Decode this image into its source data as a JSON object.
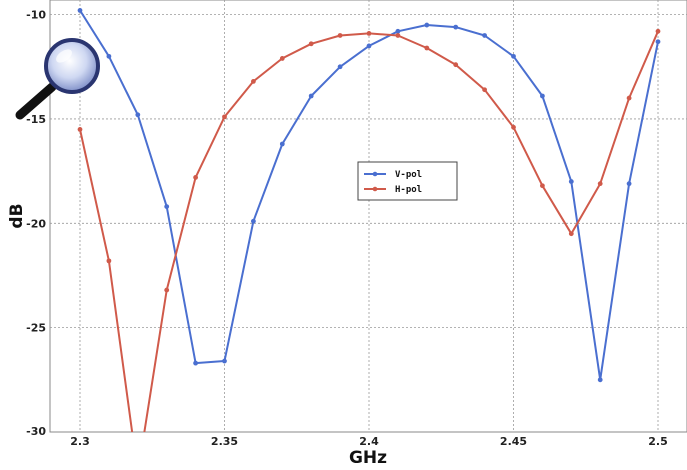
{
  "chart_data": {
    "type": "line",
    "title": "",
    "xlabel": "GHz",
    "ylabel": "dB",
    "xlim": [
      2.3,
      2.5
    ],
    "ylim": [
      -30,
      -9.3
    ],
    "grid": true,
    "legend_position": "center",
    "x_ticks": [
      {
        "value": 2.3,
        "label": "2.3"
      },
      {
        "value": 2.35,
        "label": "2.35"
      },
      {
        "value": 2.4,
        "label": "2.4"
      },
      {
        "value": 2.45,
        "label": "2.45"
      },
      {
        "value": 2.5,
        "label": "2.5"
      }
    ],
    "y_ticks": [
      {
        "value": -10,
        "label": "-10"
      },
      {
        "value": -15,
        "label": "-15"
      },
      {
        "value": -20,
        "label": "-20"
      },
      {
        "value": -25,
        "label": "-25"
      },
      {
        "value": -30,
        "label": "-30"
      }
    ],
    "x": [
      2.3,
      2.31,
      2.32,
      2.33,
      2.34,
      2.35,
      2.36,
      2.37,
      2.38,
      2.39,
      2.4,
      2.41,
      2.42,
      2.43,
      2.44,
      2.45,
      2.46,
      2.47,
      2.48,
      2.49,
      2.5
    ],
    "series": [
      {
        "name": "V-pol",
        "color": "#4a6fd0",
        "values": [
          -9.8,
          -12.0,
          -14.8,
          -19.2,
          -26.7,
          -26.6,
          -19.9,
          -16.2,
          -13.9,
          -12.5,
          -11.5,
          -10.8,
          -10.5,
          -10.6,
          -11.0,
          -12.0,
          -13.9,
          -18.0,
          -27.5,
          -18.1,
          -11.3
        ]
      },
      {
        "name": "H-pol",
        "color": "#d05a4a",
        "values": [
          -15.5,
          -21.8,
          -32.0,
          -23.2,
          -17.8,
          -14.9,
          -13.2,
          -12.1,
          -11.4,
          -11.0,
          -10.9,
          -11.0,
          -11.6,
          -12.4,
          -13.6,
          -15.4,
          -18.2,
          -20.5,
          -18.1,
          -14.0,
          -10.8
        ]
      }
    ]
  },
  "icons": {
    "magnifier": "magnifier-icon"
  }
}
